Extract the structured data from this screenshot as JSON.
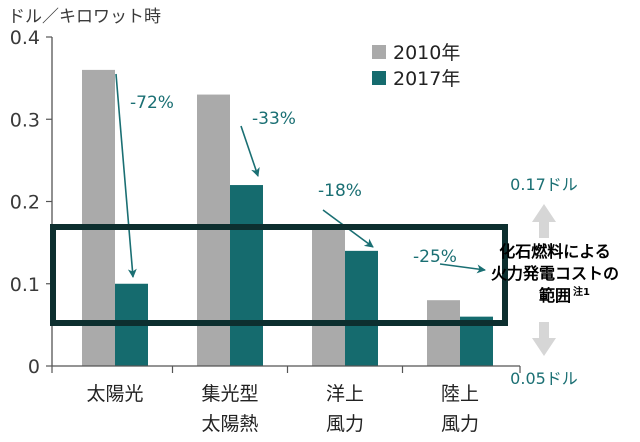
{
  "chart_data": {
    "type": "bar",
    "unit_label": "ドル／キロワット時",
    "categories": [
      [
        "太陽光"
      ],
      [
        "集光型",
        "太陽熱"
      ],
      [
        "洋上",
        "風力"
      ],
      [
        "陸上",
        "風力"
      ]
    ],
    "series": [
      {
        "name": "2010年",
        "values": [
          0.36,
          0.33,
          0.17,
          0.08
        ],
        "color": "#aaaaaa"
      },
      {
        "name": "2017年",
        "values": [
          0.1,
          0.22,
          0.14,
          0.06
        ],
        "color": "#156b6e"
      }
    ],
    "ylim": [
      0,
      0.4
    ],
    "yticks": [
      0,
      0.1,
      0.2,
      0.3,
      0.4
    ],
    "ytick_labels": [
      "0",
      "0.1",
      "0.2",
      "0.3",
      "0.4"
    ],
    "grid": false,
    "legend_position": "top-right",
    "change_labels": [
      "-72%",
      "-33%",
      "-18%",
      "-25%"
    ],
    "fossil_range": {
      "low": 0.05,
      "high": 0.17,
      "high_label": "0.17ドル",
      "low_label": "0.05ドル",
      "callout_lines": [
        "化石燃料による",
        "火力発電コストの",
        "範囲"
      ],
      "callout_note": "注1"
    }
  },
  "colors": {
    "series_2010": "#aaaaaa",
    "series_2017": "#156b6e",
    "annotation": "#1a6f73",
    "range_box": "#0d2f2f",
    "range_arrow": "#d6d6d6"
  }
}
